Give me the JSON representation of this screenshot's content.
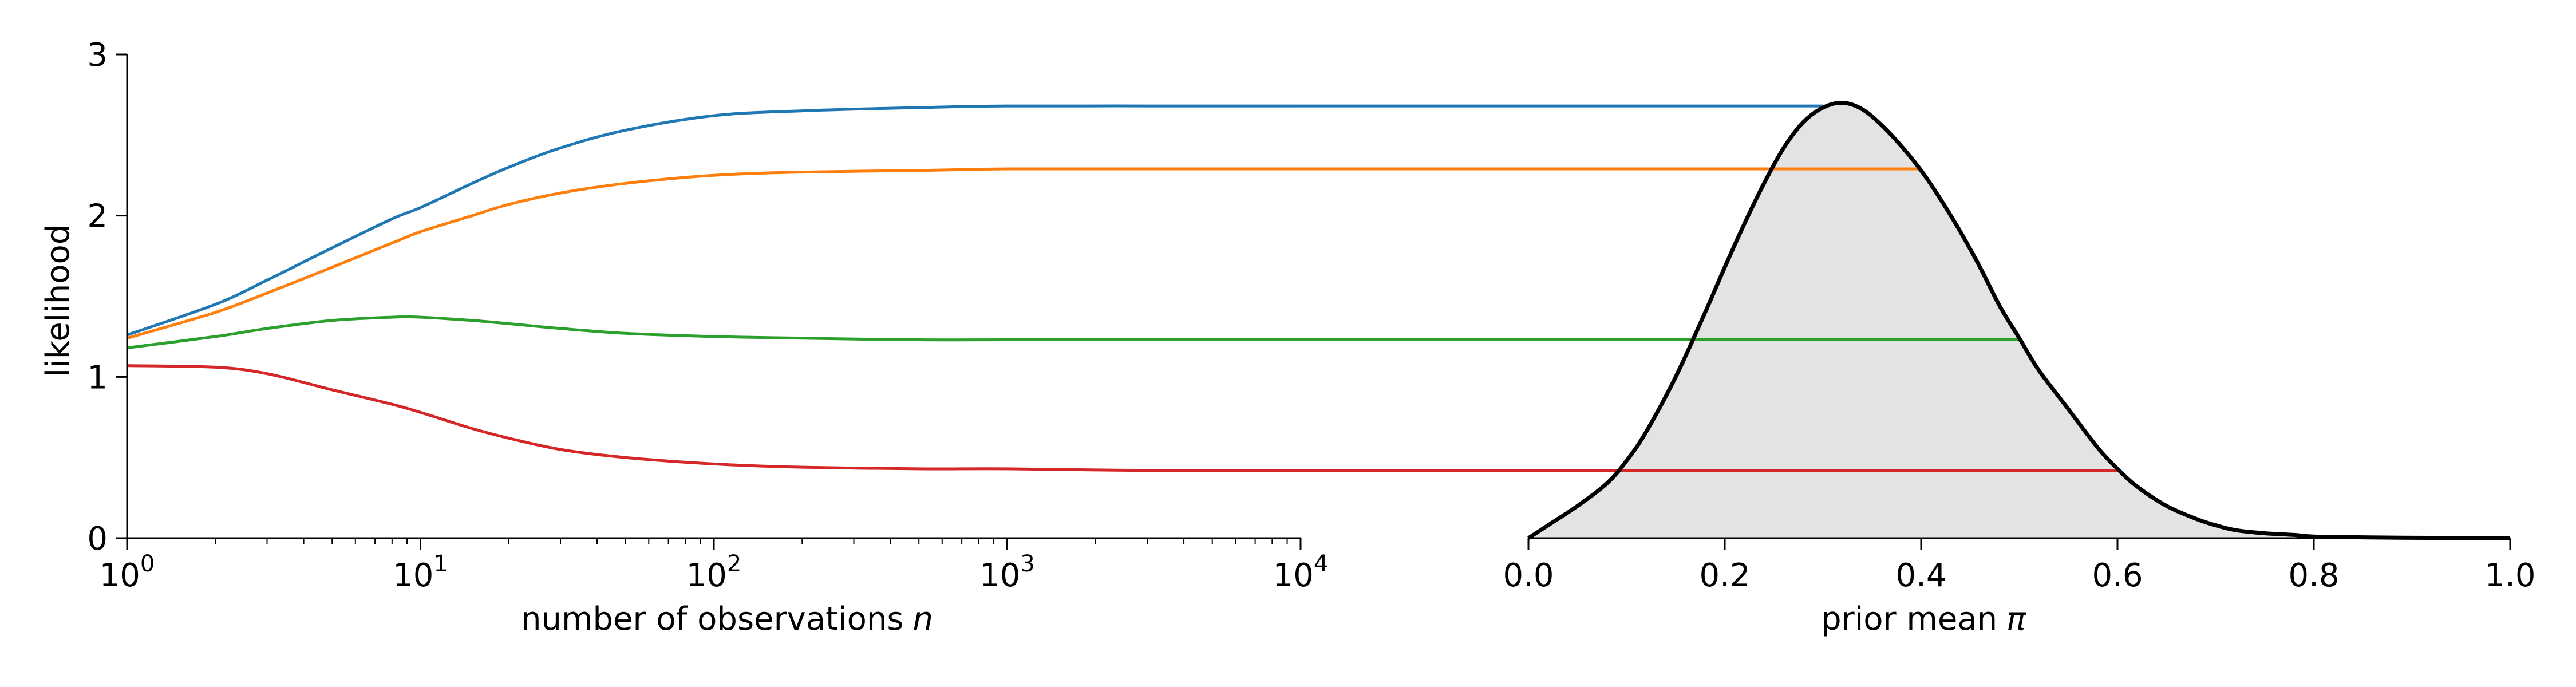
{
  "figure": {
    "ylabel": "likelihood",
    "left_xlabel": "number of observations",
    "left_xlabel_var": "n",
    "right_xlabel": "prior mean",
    "right_xlabel_var": "π"
  },
  "chart_data": [
    {
      "type": "line",
      "xscale": "log",
      "xlim": [
        1,
        10000
      ],
      "ylim": [
        0,
        3
      ],
      "xlabel": "number of observations n",
      "ylabel": "likelihood",
      "x_tick_labels": [
        {
          "base": "10",
          "exp": "0"
        },
        {
          "base": "10",
          "exp": "1"
        },
        {
          "base": "10",
          "exp": "2"
        },
        {
          "base": "10",
          "exp": "3"
        },
        {
          "base": "10",
          "exp": "4"
        }
      ],
      "y_ticks": [
        0,
        1,
        2,
        3
      ],
      "series": [
        {
          "color": "#1f77b4",
          "x": [
            1,
            2,
            3,
            5,
            8,
            10,
            15,
            20,
            30,
            50,
            100,
            200,
            500,
            1000,
            3000,
            10000
          ],
          "y": [
            1.26,
            1.45,
            1.6,
            1.8,
            1.98,
            2.05,
            2.2,
            2.3,
            2.42,
            2.53,
            2.62,
            2.65,
            2.67,
            2.68,
            2.68,
            2.68
          ]
        },
        {
          "color": "#ff7f0e",
          "x": [
            1,
            2,
            3,
            5,
            8,
            10,
            15,
            20,
            30,
            50,
            100,
            200,
            500,
            1000,
            3000,
            10000
          ],
          "y": [
            1.24,
            1.4,
            1.52,
            1.68,
            1.83,
            1.9,
            2.0,
            2.07,
            2.14,
            2.2,
            2.25,
            2.27,
            2.28,
            2.29,
            2.29,
            2.29
          ]
        },
        {
          "color": "#2ca02c",
          "x": [
            1,
            2,
            3,
            5,
            8,
            10,
            15,
            20,
            30,
            50,
            100,
            200,
            500,
            1000,
            3000,
            10000
          ],
          "y": [
            1.18,
            1.25,
            1.3,
            1.35,
            1.37,
            1.37,
            1.35,
            1.33,
            1.3,
            1.27,
            1.25,
            1.24,
            1.23,
            1.23,
            1.23,
            1.23
          ]
        },
        {
          "color": "#d62728",
          "x": [
            1,
            2,
            3,
            5,
            8,
            10,
            15,
            20,
            30,
            50,
            100,
            200,
            500,
            1000,
            3000,
            10000
          ],
          "y": [
            1.07,
            1.06,
            1.02,
            0.92,
            0.83,
            0.78,
            0.68,
            0.62,
            0.55,
            0.5,
            0.46,
            0.44,
            0.43,
            0.43,
            0.42,
            0.42
          ]
        }
      ]
    },
    {
      "type": "area",
      "xlim": [
        0,
        1
      ],
      "ylim": [
        0,
        3
      ],
      "xlabel": "prior mean π",
      "x_ticks": [
        0,
        0.2,
        0.4,
        0.6,
        0.8,
        1.0
      ],
      "x_tick_labels": [
        "0.0",
        "0.2",
        "0.4",
        "0.6",
        "0.8",
        "1.0"
      ],
      "density": {
        "color": "#000000",
        "fill": "#e3e3e3",
        "x": [
          0,
          0.02,
          0.05,
          0.08,
          0.1,
          0.12,
          0.15,
          0.18,
          0.2,
          0.22,
          0.24,
          0.26,
          0.28,
          0.3,
          0.32,
          0.34,
          0.36,
          0.38,
          0.4,
          0.42,
          0.44,
          0.46,
          0.48,
          0.5,
          0.52,
          0.55,
          0.58,
          0.6,
          0.62,
          0.65,
          0.68,
          0.7,
          0.72,
          0.75,
          0.78,
          0.8,
          0.85,
          0.9,
          0.95,
          1.0
        ],
        "y": [
          0,
          0.08,
          0.2,
          0.34,
          0.48,
          0.66,
          1.0,
          1.4,
          1.68,
          1.95,
          2.2,
          2.42,
          2.58,
          2.67,
          2.7,
          2.66,
          2.56,
          2.43,
          2.28,
          2.1,
          1.9,
          1.68,
          1.44,
          1.24,
          1.04,
          0.8,
          0.56,
          0.43,
          0.32,
          0.2,
          0.12,
          0.08,
          0.05,
          0.03,
          0.02,
          0.01,
          0.005,
          0.002,
          0.001,
          0
        ]
      },
      "levels": [
        {
          "color": "#1f77b4",
          "y": 2.68,
          "x_end": 0.3
        },
        {
          "color": "#ff7f0e",
          "y": 2.29,
          "x_end": 0.4
        },
        {
          "color": "#2ca02c",
          "y": 1.23,
          "x_end": 0.5
        },
        {
          "color": "#d62728",
          "y": 0.42,
          "x_end": 0.6
        }
      ]
    }
  ]
}
